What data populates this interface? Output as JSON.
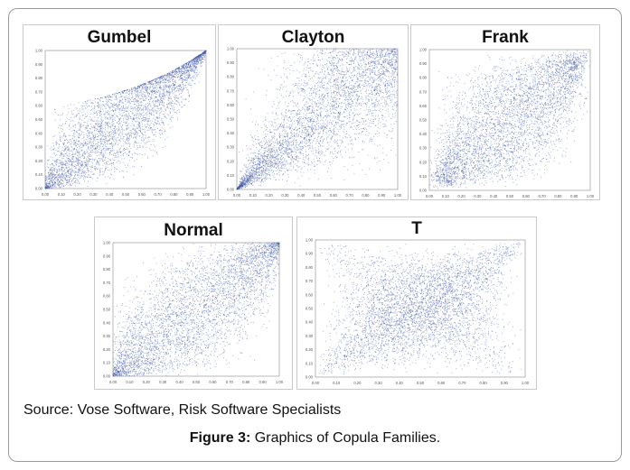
{
  "caption": {
    "source": "Source: Vose Software, Risk Software Specialists",
    "figure_label": "Figure 3:",
    "figure_text": " Graphics of Copula Families."
  },
  "colors": {
    "points": "#3f57a8",
    "axes": "#888888",
    "tick_text": "#555555"
  },
  "chart_data": [
    {
      "type": "scatter",
      "title": "Gumbel",
      "family": "gumbel",
      "xlim": [
        0,
        1
      ],
      "ylim": [
        0,
        1
      ],
      "xticks": [
        "0.00",
        "0.10",
        "0.20",
        "0.30",
        "0.40",
        "0.50",
        "0.60",
        "0.70",
        "0.80",
        "0.90",
        "1.00"
      ],
      "yticks": [
        "0.00",
        "0.10",
        "0.20",
        "0.30",
        "0.40",
        "0.50",
        "0.60",
        "0.70",
        "0.80",
        "0.90",
        "1.00"
      ],
      "grid": false,
      "legend": "none"
    },
    {
      "type": "scatter",
      "title": "Clayton",
      "family": "clayton",
      "xlim": [
        0,
        1
      ],
      "ylim": [
        0,
        1
      ],
      "xticks": [
        "0.00",
        "0.10",
        "0.20",
        "0.30",
        "0.40",
        "0.50",
        "0.60",
        "0.70",
        "0.80",
        "0.90",
        "1.00"
      ],
      "yticks": [
        "0.00",
        "0.10",
        "0.20",
        "0.30",
        "0.40",
        "0.50",
        "0.60",
        "0.70",
        "0.80",
        "0.90",
        "1.00"
      ],
      "grid": false,
      "legend": "none"
    },
    {
      "type": "scatter",
      "title": "Frank",
      "family": "frank",
      "xlim": [
        0,
        1
      ],
      "ylim": [
        0,
        1
      ],
      "xticks": [
        "0.00",
        "0.10",
        "0.20",
        "0.30",
        "0.40",
        "0.50",
        "0.60",
        "0.70",
        "0.80",
        "0.90",
        "1.00"
      ],
      "yticks": [
        "0.00",
        "0.10",
        "0.20",
        "0.30",
        "0.40",
        "0.50",
        "0.60",
        "0.70",
        "0.80",
        "0.90",
        "1.00"
      ],
      "grid": false,
      "legend": "none"
    },
    {
      "type": "scatter",
      "title": "Normal",
      "family": "normal",
      "xlim": [
        0,
        1
      ],
      "ylim": [
        0,
        1
      ],
      "xticks": [
        "0.00",
        "0.10",
        "0.20",
        "0.30",
        "0.40",
        "0.50",
        "0.60",
        "0.70",
        "0.80",
        "0.90",
        "1.00"
      ],
      "yticks": [
        "0.00",
        "0.10",
        "0.20",
        "0.30",
        "0.40",
        "0.50",
        "0.60",
        "0.70",
        "0.80",
        "0.90",
        "1.00"
      ],
      "grid": false,
      "legend": "none"
    },
    {
      "type": "scatter",
      "title": "T",
      "family": "t",
      "xlim": [
        0,
        1
      ],
      "ylim": [
        0,
        1
      ],
      "xticks": [
        "0.00",
        "0.10",
        "0.20",
        "0.30",
        "0.40",
        "0.50",
        "0.60",
        "0.70",
        "0.80",
        "0.90",
        "1.00"
      ],
      "yticks": [
        "0.00",
        "0.10",
        "0.20",
        "0.30",
        "0.40",
        "0.50",
        "0.60",
        "0.70",
        "0.80",
        "0.90",
        "1.00"
      ],
      "grid": false,
      "legend": "none"
    }
  ]
}
